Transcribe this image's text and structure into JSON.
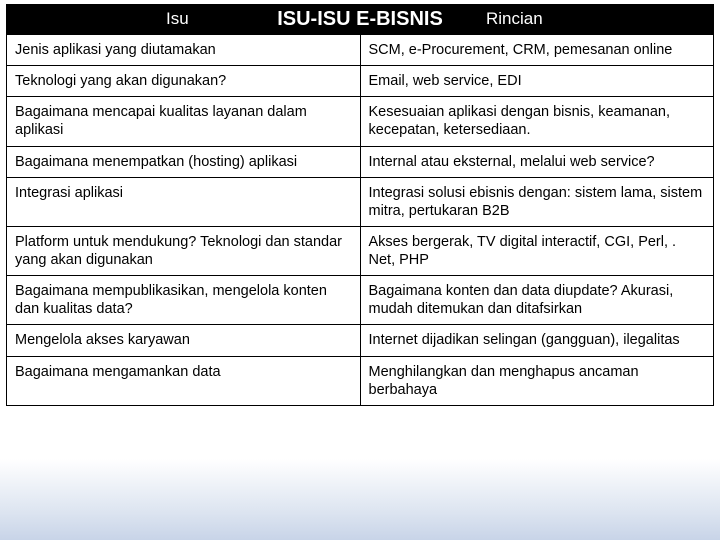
{
  "header": {
    "left": "Isu",
    "center": "ISU-ISU E-BISNIS",
    "right": "Rincian"
  },
  "table": {
    "type": "table",
    "columns": [
      "Isu",
      "Rincian"
    ],
    "column_widths_pct": [
      50,
      50
    ],
    "border_color": "#000000",
    "cell_background": "#ffffff",
    "text_color": "#000000",
    "font_size_pt": 11,
    "rows": [
      [
        "Jenis aplikasi yang diutamakan",
        "SCM, e-Procurement, CRM, pemesanan online"
      ],
      [
        "Teknologi yang akan digunakan?",
        "Email, web service, EDI"
      ],
      [
        "Bagaimana mencapai kualitas layanan dalam aplikasi",
        "Kesesuaian aplikasi dengan  bisnis, keamanan, kecepatan, ketersediaan."
      ],
      [
        "Bagaimana menempatkan (hosting) aplikasi",
        "Internal atau eksternal, melalui web service?"
      ],
      [
        "Integrasi aplikasi",
        "Integrasi solusi ebisnis dengan: sistem lama, sistem mitra, pertukaran B2B"
      ],
      [
        "Platform untuk mendukung? Teknologi dan standar yang akan digunakan",
        "Akses bergerak, TV digital interactif, CGI, Perl, . Net, PHP"
      ],
      [
        "Bagaimana mempublikasikan, mengelola konten dan kualitas data?",
        "Bagaimana konten dan data diupdate? Akurasi, mudah ditemukan dan ditafsirkan"
      ],
      [
        "Mengelola akses karyawan",
        "Internet dijadikan selingan (gangguan), ilegalitas"
      ],
      [
        "Bagaimana mengamankan data",
        "Menghilangkan dan menghapus ancaman berbahaya"
      ]
    ]
  },
  "slide_background": {
    "gradient_top": "#ffffff",
    "gradient_bottom": "#c8d4e8"
  },
  "header_style": {
    "background": "#000000",
    "text_color": "#ffffff",
    "title_fontsize_pt": 15,
    "title_fontweight": "bold",
    "side_fontsize_pt": 13
  }
}
